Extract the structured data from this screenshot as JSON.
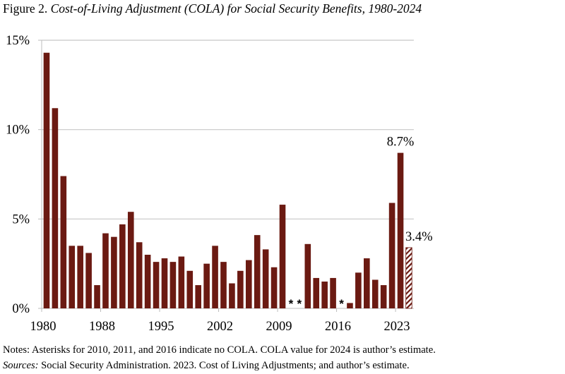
{
  "title": {
    "prefix": "Figure 2. ",
    "italic": "Cost-of-Living Adjustment (COLA) for Social Security Benefits, 1980-2024"
  },
  "chart_data": {
    "type": "bar",
    "title": "Cost-of-Living Adjustment (COLA) for Social Security Benefits, 1980-2024",
    "xlabel": "",
    "ylabel": "",
    "ylim": [
      0,
      15
    ],
    "yticks": [
      "0%",
      "5%",
      "10%",
      "15%"
    ],
    "ytick_values": [
      0,
      5,
      10,
      15
    ],
    "xtick_labels": [
      "1980",
      "1988",
      "1995",
      "2002",
      "2009",
      "2016",
      "2023"
    ],
    "grid": true,
    "categories": [
      1981,
      1982,
      1983,
      1984,
      1985,
      1986,
      1987,
      1988,
      1989,
      1990,
      1991,
      1992,
      1993,
      1994,
      1995,
      1996,
      1997,
      1998,
      1999,
      2000,
      2001,
      2002,
      2003,
      2004,
      2005,
      2006,
      2007,
      2008,
      2009,
      2010,
      2011,
      2012,
      2013,
      2014,
      2015,
      2016,
      2017,
      2018,
      2019,
      2020,
      2021,
      2022,
      2023,
      2024
    ],
    "values": [
      14.3,
      11.2,
      7.4,
      3.5,
      3.5,
      3.1,
      1.3,
      4.2,
      4.0,
      4.7,
      5.4,
      3.7,
      3.0,
      2.6,
      2.8,
      2.6,
      2.9,
      2.1,
      1.3,
      2.5,
      3.5,
      2.6,
      1.4,
      2.1,
      2.7,
      4.1,
      3.3,
      2.3,
      5.8,
      0,
      0,
      3.6,
      1.7,
      1.5,
      1.7,
      0,
      0.3,
      2.0,
      2.8,
      1.6,
      1.3,
      5.9,
      8.7,
      3.4
    ],
    "no_cola_marker": "*",
    "no_cola_years": [
      2010,
      2011,
      2016
    ],
    "estimate_years": [
      2024
    ],
    "annotations": [
      {
        "year": 2023,
        "text": "8.7%"
      },
      {
        "year": 2024,
        "text": "3.4%"
      }
    ],
    "colors": {
      "bar": "#6b1a12",
      "grid": "#c8c8c8",
      "axis": "#bdbdbd"
    }
  },
  "notes": {
    "line1": "Notes: Asterisks for 2010, 2011, and 2016 indicate no COLA.  COLA value for 2024 is author’s estimate.",
    "sources_label": "Sources:",
    "sources_text": " Social Security Administration. 2023. Cost of Living Adjustments; and author’s estimate."
  }
}
